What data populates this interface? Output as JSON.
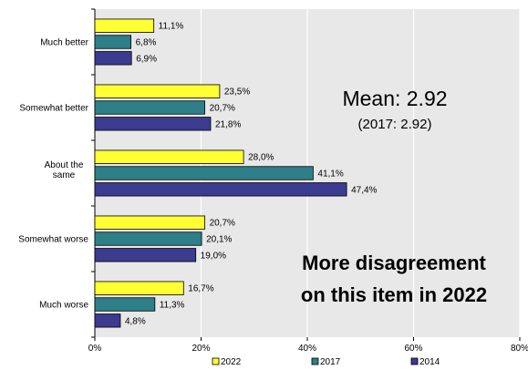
{
  "chart_data": {
    "type": "bar",
    "orientation": "horizontal",
    "categories": [
      "Much better",
      "Somewhat better",
      "About the same",
      "Somewhat worse",
      "Much worse"
    ],
    "series": [
      {
        "name": "2022",
        "values": [
          11.1,
          23.5,
          28.0,
          20.7,
          16.7
        ],
        "labels": [
          "11,1%",
          "23,5%",
          "28,0%",
          "20,7%",
          "16,7%"
        ],
        "color": "#ffff33"
      },
      {
        "name": "2017",
        "values": [
          6.8,
          20.7,
          41.1,
          20.1,
          11.3
        ],
        "labels": [
          "6,8%",
          "20,7%",
          "41,1%",
          "20,1%",
          "11,3%"
        ],
        "color": "#2e7f87"
      },
      {
        "name": "2014",
        "values": [
          6.9,
          21.8,
          47.4,
          19.0,
          4.8
        ],
        "labels": [
          "6,9%",
          "21,8%",
          "47,4%",
          "19,0%",
          "4,8%"
        ],
        "color": "#3b3b8f"
      }
    ],
    "xlim": [
      0,
      80
    ],
    "xticks": [
      0,
      20,
      40,
      60,
      80
    ],
    "xtick_labels": [
      "0%",
      "20%",
      "40%",
      "60%",
      "80%"
    ],
    "grid": true,
    "legend_position": "bottom",
    "plot_background": "#e8e8e8",
    "annotations": {
      "mean": "Mean:  2.92",
      "mean_prev": "(2017: 2.92)",
      "note_line1": "More disagreement",
      "note_line2": "on this item in 2022"
    }
  }
}
